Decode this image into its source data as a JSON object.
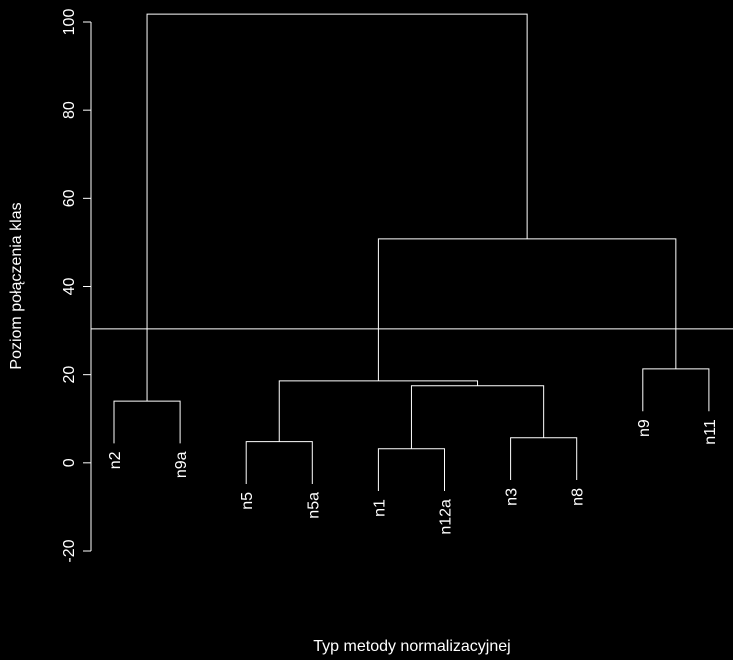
{
  "chart_data": {
    "type": "dendrogram",
    "xlabel": "Typ metody normalizacyjnej",
    "ylabel": "Poziom połączenia klas",
    "leaves": [
      "n2",
      "n9a",
      "n5",
      "n5a",
      "n1",
      "n12a",
      "n3",
      "n8",
      "n9",
      "n11"
    ],
    "merges": [
      {
        "children": [
          4,
          5
        ],
        "height": 3.2
      },
      {
        "children": [
          2,
          3
        ],
        "height": 4.8
      },
      {
        "children": [
          6,
          7
        ],
        "height": 5.7
      },
      {
        "children": [
          0,
          1
        ],
        "height": 14
      },
      {
        "children": [
          10,
          12
        ],
        "height": 17.5
      },
      {
        "children": [
          11,
          14
        ],
        "height": 18.6
      },
      {
        "children": [
          8,
          9
        ],
        "height": 21.3
      },
      {
        "children": [
          15,
          16
        ],
        "height": 50.8
      },
      {
        "children": [
          13,
          17
        ],
        "height": 101.8
      }
    ],
    "cut_height": 30.4,
    "ylim": [
      -20,
      100
    ],
    "yticks": [
      -20,
      0,
      20,
      40,
      60,
      80,
      100
    ],
    "color": "#ffffff",
    "background": "#000000"
  }
}
